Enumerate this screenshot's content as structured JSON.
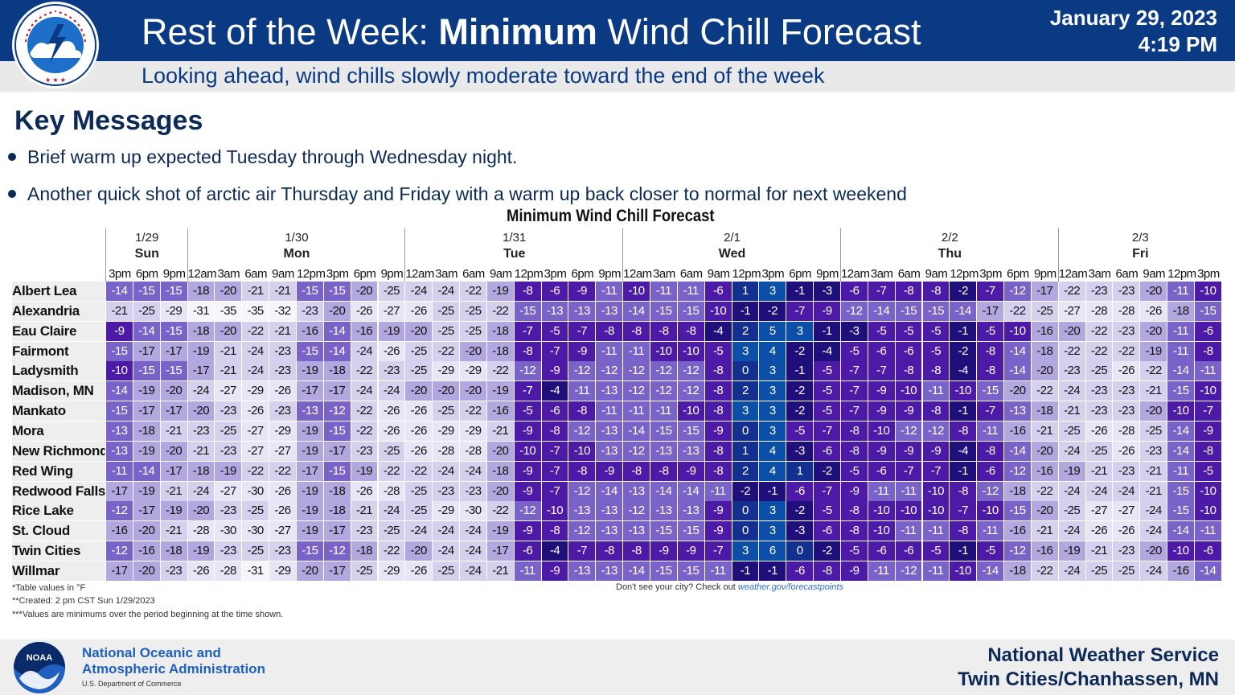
{
  "header": {
    "title_prefix": "Rest of the Week: ",
    "title_bold": "Minimum",
    "title_suffix": " Wind Chill Forecast",
    "date": "January 29, 2023",
    "time": "4:19 PM",
    "subtitle": "Looking ahead, wind chills slowly moderate toward the end of the week",
    "logo_text": "NATIONAL WEATHER SERVICE"
  },
  "key_messages": {
    "title": "Key Messages",
    "bullets": [
      "Brief warm up expected Tuesday through Wednesday night.",
      "Another quick shot of arctic air Thursday and Friday with a warm up back closer to normal for next weekend"
    ]
  },
  "table": {
    "title": "Minimum Wind Chill Forecast",
    "days": [
      {
        "date": "1/29",
        "name": "Sun",
        "hours": [
          "3pm",
          "6pm",
          "9pm"
        ]
      },
      {
        "date": "1/30",
        "name": "Mon",
        "hours": [
          "12am",
          "3am",
          "6am",
          "9am",
          "12pm",
          "3pm",
          "6pm",
          "9pm"
        ]
      },
      {
        "date": "1/31",
        "name": "Tue",
        "hours": [
          "12am",
          "3am",
          "6am",
          "9am",
          "12pm",
          "3pm",
          "6pm",
          "9pm"
        ]
      },
      {
        "date": "2/1",
        "name": "Wed",
        "hours": [
          "12am",
          "3am",
          "6am",
          "9am",
          "12pm",
          "3pm",
          "6pm",
          "9pm"
        ]
      },
      {
        "date": "2/2",
        "name": "Thu",
        "hours": [
          "12am",
          "3am",
          "6am",
          "9am",
          "12pm",
          "3pm",
          "6pm",
          "9pm"
        ]
      },
      {
        "date": "2/3",
        "name": "Fri",
        "hours": [
          "12am",
          "3am",
          "6am",
          "9am",
          "12pm",
          "3pm"
        ]
      }
    ],
    "rows": [
      {
        "city": "Albert Lea",
        "values": [
          -14,
          -15,
          -15,
          -18,
          -20,
          -21,
          -21,
          -15,
          -15,
          -20,
          -25,
          -24,
          -24,
          -22,
          -19,
          -8,
          -6,
          -9,
          -11,
          -10,
          -11,
          -11,
          -6,
          1,
          3,
          -1,
          -3,
          -6,
          -7,
          -8,
          -8,
          -2,
          -7,
          -12,
          -17,
          -22,
          -23,
          -23,
          -20,
          -11,
          -10
        ]
      },
      {
        "city": "Alexandria",
        "values": [
          -21,
          -25,
          -29,
          -31,
          -35,
          -35,
          -32,
          -23,
          -20,
          -26,
          -27,
          -26,
          -25,
          -25,
          -22,
          -15,
          -13,
          -13,
          -13,
          -14,
          -15,
          -15,
          -10,
          -1,
          -2,
          -7,
          -9,
          -12,
          -14,
          -15,
          -15,
          -14,
          -17,
          -22,
          -25,
          -27,
          -28,
          -28,
          -26,
          -18,
          -15
        ]
      },
      {
        "city": "Eau Claire",
        "values": [
          -9,
          -14,
          -15,
          -18,
          -20,
          -22,
          -21,
          -16,
          -14,
          -16,
          -19,
          -20,
          -25,
          -25,
          -18,
          -7,
          -5,
          -7,
          -8,
          -8,
          -8,
          -8,
          -4,
          2,
          5,
          3,
          -1,
          -3,
          -5,
          -5,
          -5,
          -1,
          -5,
          -10,
          -16,
          -20,
          -22,
          -23,
          -20,
          -11,
          -6
        ]
      },
      {
        "city": "Fairmont",
        "values": [
          -15,
          -17,
          -17,
          -19,
          -21,
          -24,
          -23,
          -15,
          -14,
          -24,
          -26,
          -25,
          -22,
          -20,
          -18,
          -8,
          -7,
          -9,
          -11,
          -11,
          -10,
          -10,
          -5,
          3,
          4,
          -2,
          -4,
          -5,
          -6,
          -6,
          -5,
          -2,
          -8,
          -14,
          -18,
          -22,
          -22,
          -22,
          -19,
          -11,
          -8
        ]
      },
      {
        "city": "Ladysmith",
        "values": [
          -10,
          -15,
          -15,
          -17,
          -21,
          -24,
          -23,
          -19,
          -18,
          -22,
          -23,
          -25,
          -29,
          -29,
          -22,
          -12,
          -9,
          -12,
          -12,
          -12,
          -12,
          -12,
          -8,
          0,
          3,
          -1,
          -5,
          -7,
          -7,
          -8,
          -8,
          -4,
          -8,
          -14,
          -20,
          -23,
          -25,
          -26,
          -22,
          -14,
          -11
        ]
      },
      {
        "city": "Madison, MN",
        "values": [
          -14,
          -19,
          -20,
          -24,
          -27,
          -29,
          -26,
          -17,
          -17,
          -24,
          -24,
          -20,
          -20,
          -20,
          -19,
          -7,
          -4,
          -11,
          -13,
          -12,
          -12,
          -12,
          -8,
          2,
          3,
          -2,
          -5,
          -7,
          -9,
          -10,
          -11,
          -10,
          -15,
          -20,
          -22,
          -24,
          -23,
          -23,
          -21,
          -15,
          -10
        ]
      },
      {
        "city": "Mankato",
        "values": [
          -15,
          -17,
          -17,
          -20,
          -23,
          -26,
          -23,
          -13,
          -12,
          -22,
          -26,
          -26,
          -25,
          -22,
          -16,
          -5,
          -6,
          -8,
          -11,
          -11,
          -11,
          -10,
          -8,
          3,
          3,
          -2,
          -5,
          -7,
          -9,
          -9,
          -8,
          -1,
          -7,
          -13,
          -18,
          -21,
          -23,
          -23,
          -20,
          -10,
          -7
        ]
      },
      {
        "city": "Mora",
        "values": [
          -13,
          -18,
          -21,
          -23,
          -25,
          -27,
          -29,
          -19,
          -15,
          -22,
          -26,
          -26,
          -29,
          -29,
          -21,
          -9,
          -8,
          -12,
          -13,
          -14,
          -15,
          -15,
          -9,
          0,
          3,
          -5,
          -7,
          -8,
          -10,
          -12,
          -12,
          -8,
          -11,
          -16,
          -21,
          -25,
          -26,
          -28,
          -25,
          -14,
          -9
        ]
      },
      {
        "city": "New Richmond",
        "values": [
          -13,
          -19,
          -20,
          -21,
          -23,
          -27,
          -27,
          -19,
          -17,
          -23,
          -25,
          -26,
          -28,
          -28,
          -20,
          -10,
          -7,
          -10,
          -13,
          -12,
          -13,
          -13,
          -8,
          1,
          4,
          -3,
          -6,
          -8,
          -9,
          -9,
          -9,
          -4,
          -8,
          -14,
          -20,
          -24,
          -25,
          -26,
          -23,
          -14,
          -8
        ]
      },
      {
        "city": "Red Wing",
        "values": [
          -11,
          -14,
          -17,
          -18,
          -19,
          -22,
          -22,
          -17,
          -15,
          -19,
          -22,
          -22,
          -24,
          -24,
          -18,
          -9,
          -7,
          -8,
          -9,
          -8,
          -8,
          -9,
          -8,
          2,
          4,
          1,
          -2,
          -5,
          -6,
          -7,
          -7,
          -1,
          -6,
          -12,
          -16,
          -19,
          -21,
          -23,
          -21,
          -11,
          -5
        ]
      },
      {
        "city": "Redwood Falls",
        "values": [
          -17,
          -19,
          -21,
          -24,
          -27,
          -30,
          -26,
          -19,
          -18,
          -26,
          -28,
          -25,
          -23,
          -23,
          -20,
          -9,
          -7,
          -12,
          -14,
          -13,
          -14,
          -14,
          -11,
          -2,
          -1,
          -6,
          -7,
          -9,
          -11,
          -11,
          -10,
          -8,
          -12,
          -18,
          -22,
          -24,
          -24,
          -24,
          -21,
          -15,
          -10
        ]
      },
      {
        "city": "Rice Lake",
        "values": [
          -12,
          -17,
          -19,
          -20,
          -23,
          -25,
          -26,
          -19,
          -18,
          -21,
          -24,
          -25,
          -29,
          -30,
          -22,
          -12,
          -10,
          -13,
          -13,
          -12,
          -13,
          -13,
          -9,
          0,
          3,
          -2,
          -5,
          -8,
          -10,
          -10,
          -10,
          -7,
          -10,
          -15,
          -20,
          -25,
          -27,
          -27,
          -24,
          -15,
          -10
        ]
      },
      {
        "city": "St. Cloud",
        "values": [
          -16,
          -20,
          -21,
          -28,
          -30,
          -30,
          -27,
          -19,
          -17,
          -23,
          -25,
          -24,
          -24,
          -24,
          -19,
          -9,
          -8,
          -12,
          -13,
          -13,
          -15,
          -15,
          -9,
          0,
          3,
          -3,
          -6,
          -8,
          -10,
          -11,
          -11,
          -8,
          -11,
          -16,
          -21,
          -24,
          -26,
          -26,
          -24,
          -14,
          -11
        ]
      },
      {
        "city": "Twin Cities",
        "values": [
          -12,
          -16,
          -18,
          -19,
          -23,
          -25,
          -23,
          -15,
          -12,
          -18,
          -22,
          -20,
          -24,
          -24,
          -17,
          -6,
          -4,
          -7,
          -8,
          -8,
          -9,
          -9,
          -7,
          3,
          6,
          0,
          -2,
          -5,
          -6,
          -6,
          -5,
          -1,
          -5,
          -12,
          -16,
          -19,
          -21,
          -23,
          -20,
          -10,
          -6
        ]
      },
      {
        "city": "Willmar",
        "values": [
          -17,
          -20,
          -23,
          -26,
          -28,
          -31,
          -29,
          -20,
          -17,
          -25,
          -29,
          -26,
          -25,
          -24,
          -21,
          -11,
          -9,
          -13,
          -13,
          -14,
          -15,
          -15,
          -11,
          -1,
          -1,
          -6,
          -8,
          -9,
          -11,
          -12,
          -11,
          -10,
          -14,
          -18,
          -22,
          -24,
          -25,
          -25,
          -24,
          -16,
          -14
        ]
      }
    ],
    "notes": [
      "*Table values in °F",
      "**Created: 2 pm CST Sun 1/29/2023",
      "***Values are minimums over the period beginning at the time shown."
    ],
    "city_note_prefix": "Don't see your city? Check out ",
    "city_note_link": "weather.gov/forecastpoints"
  },
  "footer": {
    "noaa_line1": "National Oceanic and",
    "noaa_line2": "Atmospheric Administration",
    "noaa_dept": "U.S. Department of Commerce",
    "noaa_logo_text": "NOAA",
    "nws_line1": "National Weather Service",
    "nws_line2": "Twin Cities/Chanhassen, MN"
  },
  "colors": {
    "header_bg": "#0a3a84",
    "title_text": "#0c2a55",
    "link": "#2a6fd6"
  }
}
